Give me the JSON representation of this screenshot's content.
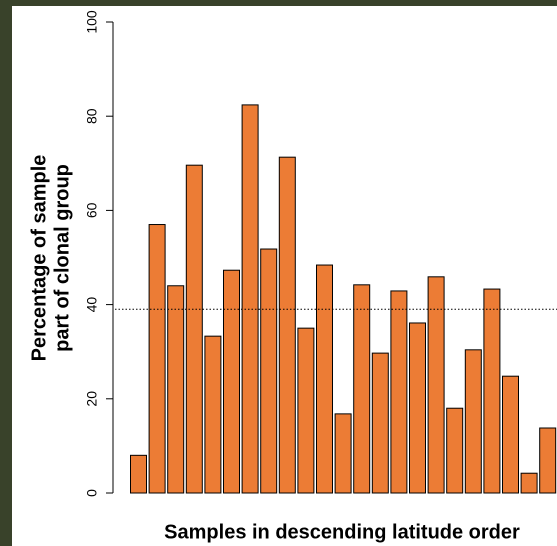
{
  "chart_data": {
    "type": "bar",
    "xlabel": "Samples in descending latitude order",
    "ylabel": [
      "Percentage of sample",
      "part of clonal group"
    ],
    "categories": [
      null,
      null,
      null,
      null,
      null,
      null,
      null,
      null,
      null,
      null,
      null,
      null,
      null,
      null,
      null,
      null,
      null,
      null,
      null,
      null,
      null,
      null,
      null
    ],
    "values": [
      8,
      57,
      44,
      69.6,
      33.3,
      47.3,
      82.4,
      51.8,
      71.3,
      35,
      48.4,
      16.8,
      44.2,
      29.7,
      42.9,
      36.1,
      45.9,
      18,
      30.4,
      43.3,
      24.8,
      4.2,
      13.8
    ],
    "color": "#ec7c35",
    "reference_line": 39,
    "ylim": [
      0,
      100
    ],
    "yticks": [
      0,
      20,
      40,
      60,
      80,
      100
    ]
  }
}
